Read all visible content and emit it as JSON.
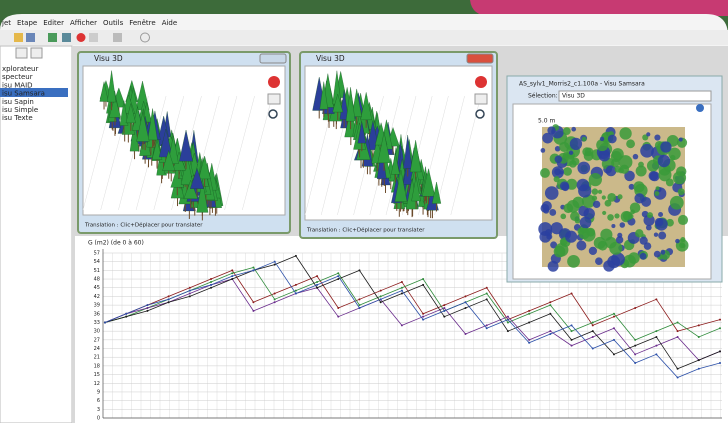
{
  "menu": [
    "jet",
    "Etape",
    "Editer",
    "Afficher",
    "Outils",
    "Fenêtre",
    "Aide"
  ],
  "tools": [
    "xplorateur",
    "specteur",
    "isu MAID",
    "isu Samsara",
    "isu Sapin",
    "isu Simple",
    "isu Texte"
  ],
  "windows": [
    {
      "title": "Visu 3D",
      "status": "Translation : Clic+Déplacer pour translater"
    },
    {
      "title": "Visu 3D",
      "status": "Translation : Clic+Déplacer pour translater"
    }
  ],
  "samsara": {
    "title": "AS_sylv1_Morris2_c1.100a - Visu Samsara",
    "selection_label": "Sélection:",
    "selection_value": "Visu 3D",
    "scale": "5.0 m"
  },
  "graph": {
    "type": "line",
    "ylabel": "G (m2) (de 0 à 60)",
    "ylim": [
      0,
      57
    ],
    "yticks": [
      0,
      3,
      6,
      9,
      12,
      15,
      18,
      21,
      24,
      27,
      30,
      33,
      36,
      39,
      42,
      45,
      48,
      51,
      54,
      57
    ],
    "series": [
      {
        "color": "#8b1a1a",
        "values": [
          33,
          36,
          39,
          42,
          45,
          48,
          51,
          40,
          43,
          46,
          49,
          38,
          41,
          44,
          47,
          36,
          39,
          42,
          45,
          34,
          37,
          40,
          43,
          32,
          35,
          38,
          41,
          30,
          32,
          34
        ]
      },
      {
        "color": "#2e8b3a",
        "values": [
          33,
          35,
          38,
          41,
          44,
          47,
          50,
          52,
          41,
          44,
          47,
          50,
          39,
          42,
          45,
          48,
          37,
          40,
          43,
          33,
          36,
          39,
          30,
          33,
          36,
          27,
          30,
          33,
          28,
          31
        ]
      },
      {
        "color": "#6a2c8c",
        "values": [
          33,
          36,
          38,
          40,
          43,
          46,
          48,
          37,
          40,
          43,
          45,
          35,
          38,
          41,
          32,
          35,
          38,
          29,
          32,
          35,
          27,
          30,
          25,
          28,
          31,
          22,
          25,
          28,
          20,
          23
        ]
      },
      {
        "color": "#1a1a1a",
        "values": [
          33,
          35,
          37,
          40,
          42,
          45,
          48,
          51,
          53,
          56,
          45,
          48,
          51,
          40,
          43,
          46,
          35,
          38,
          41,
          30,
          33,
          36,
          27,
          30,
          22,
          25,
          28,
          17,
          20,
          23
        ]
      },
      {
        "color": "#2b4fa8",
        "values": [
          33,
          36,
          39,
          41,
          44,
          46,
          49,
          51,
          54,
          43,
          46,
          49,
          38,
          41,
          44,
          34,
          37,
          40,
          31,
          34,
          26,
          29,
          32,
          24,
          27,
          19,
          22,
          14,
          17,
          19
        ]
      }
    ]
  }
}
